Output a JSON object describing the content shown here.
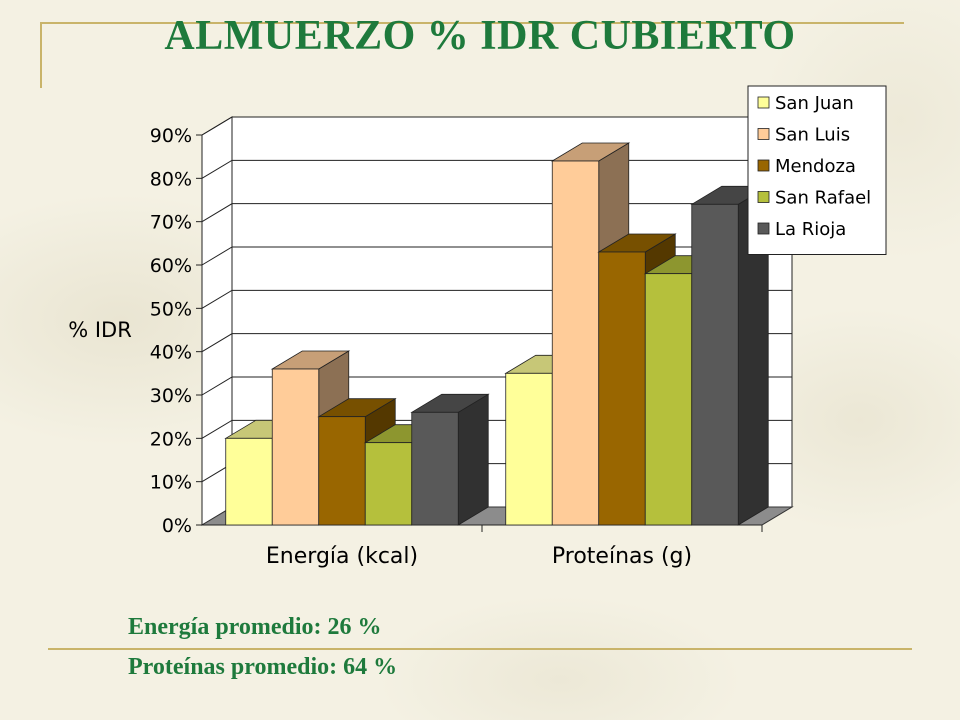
{
  "title": "ALMUERZO  % IDR CUBIERTO",
  "summary": {
    "line1": "Energía promedio: 26 %",
    "line2": "Proteínas promedio: 64 %"
  },
  "colors": {
    "title_text": "#1e7a3c",
    "rule": "#c9b46a"
  },
  "chart_data": {
    "type": "bar",
    "ylabel": "% IDR",
    "xlabel": "",
    "categories": [
      "Energía (kcal)",
      "Proteínas (g)"
    ],
    "ylim": [
      0,
      90
    ],
    "yticks": [
      0,
      10,
      20,
      30,
      40,
      50,
      60,
      70,
      80,
      90
    ],
    "ytick_format": "percent",
    "grid": true,
    "legend_position": "top-right",
    "three_d": true,
    "series": [
      {
        "name": "San Juan",
        "values": [
          20,
          35
        ],
        "color": "#ffff99"
      },
      {
        "name": "San Luis",
        "values": [
          36,
          84
        ],
        "color": "#ffcc99"
      },
      {
        "name": "Mendoza",
        "values": [
          25,
          63
        ],
        "color": "#996600"
      },
      {
        "name": "San Rafael",
        "values": [
          19,
          58
        ],
        "color": "#b5c03c"
      },
      {
        "name": "La Rioja",
        "values": [
          26,
          74
        ],
        "color": "#595959"
      }
    ]
  }
}
